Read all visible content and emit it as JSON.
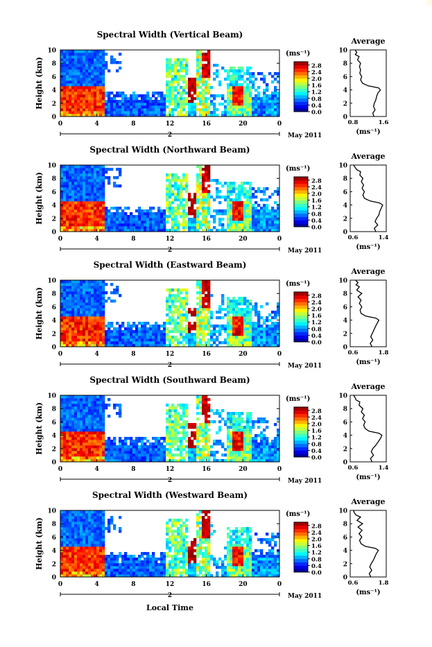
{
  "figure": {
    "xlabel": "Local Time",
    "date_label": "May 2011",
    "day_label": "2",
    "units_label": "(ms⁻¹)",
    "avg_title": "Average",
    "avg_xlabel": "(ms⁻¹)",
    "ylabel": "Height (km)"
  },
  "chart_data": [
    {
      "type": "heatmap",
      "title": "Spectral Width (Vertical Beam)",
      "ylabel": "Height (km)",
      "xlabel": "Local Time",
      "x_ticks": [
        "0",
        "4",
        "8",
        "12",
        "16",
        "20",
        "0"
      ],
      "y_ticks": [
        "0",
        "2",
        "4",
        "6",
        "8",
        "10"
      ],
      "colorbar_ticks": [
        "0.0",
        "0.4",
        "0.8",
        "1.2",
        "1.6",
        "2.0",
        "2.4",
        "2.8"
      ],
      "colorbar_range": [
        0,
        3.0
      ],
      "profile": {
        "title": "Average",
        "xlim": [
          0.8,
          1.6
        ],
        "x_ticks": [
          "0.8",
          "1.6"
        ],
        "y_ticks": [
          "0",
          "2",
          "4",
          "6",
          "8",
          "10"
        ],
        "heights": [
          0,
          0.5,
          1,
          1.5,
          2,
          2.5,
          3,
          3.5,
          4,
          4.3,
          4.6,
          5,
          5.5,
          6,
          6.5,
          7,
          7.5,
          8,
          8.5,
          9,
          9.3,
          9.6,
          10
        ],
        "values": [
          1.35,
          1.32,
          1.38,
          1.34,
          1.36,
          1.4,
          1.42,
          1.45,
          1.52,
          1.47,
          1.2,
          1.05,
          1.0,
          1.03,
          0.98,
          1.0,
          0.97,
          1.0,
          0.92,
          0.96,
          0.86,
          0.9,
          0.86
        ]
      }
    },
    {
      "type": "heatmap",
      "title": "Spectral Width (Northward Beam)",
      "ylabel": "Height (km)",
      "xlabel": "Local Time",
      "x_ticks": [
        "0",
        "4",
        "8",
        "12",
        "16",
        "20",
        "0"
      ],
      "y_ticks": [
        "0",
        "2",
        "4",
        "6",
        "8",
        "10"
      ],
      "colorbar_ticks": [
        "0.0",
        "0.4",
        "0.8",
        "1.2",
        "1.6",
        "2.0",
        "2.4",
        "2.8"
      ],
      "colorbar_range": [
        0,
        3.0
      ],
      "profile": {
        "title": "Average",
        "xlim": [
          0.6,
          1.4
        ],
        "x_ticks": [
          "0.6",
          "1.4"
        ],
        "y_ticks": [
          "0",
          "2",
          "4",
          "6",
          "8",
          "10"
        ],
        "heights": [
          0,
          0.5,
          1,
          1.5,
          2,
          2.5,
          3,
          3.5,
          4,
          4.3,
          4.6,
          5,
          5.5,
          6,
          6.5,
          7,
          7.5,
          8,
          8.5,
          9,
          9.3,
          9.6,
          10
        ],
        "values": [
          1.2,
          1.16,
          1.25,
          1.18,
          1.22,
          1.28,
          1.3,
          1.34,
          1.38,
          1.3,
          1.05,
          0.9,
          0.86,
          0.9,
          0.84,
          0.88,
          0.82,
          0.86,
          0.78,
          0.8,
          0.7,
          0.66,
          0.62
        ]
      }
    },
    {
      "type": "heatmap",
      "title": "Spectral Width (Eastward Beam)",
      "ylabel": "Height (km)",
      "xlabel": "Local Time",
      "x_ticks": [
        "0",
        "4",
        "8",
        "12",
        "16",
        "20",
        "0"
      ],
      "y_ticks": [
        "0",
        "2",
        "4",
        "6",
        "8",
        "10"
      ],
      "colorbar_ticks": [
        "0.0",
        "0.4",
        "0.8",
        "1.2",
        "1.6",
        "2.0",
        "2.4",
        "2.8"
      ],
      "colorbar_range": [
        0,
        3.0
      ],
      "profile": {
        "title": "Average",
        "xlim": [
          0.6,
          1.8
        ],
        "x_ticks": [
          "0.6",
          "1.8"
        ],
        "y_ticks": [
          "0",
          "2",
          "4",
          "6",
          "8",
          "10"
        ],
        "heights": [
          0,
          0.5,
          1,
          1.5,
          2,
          2.5,
          3,
          3.5,
          4,
          4.3,
          4.6,
          5,
          5.5,
          6,
          6.5,
          7,
          7.5,
          8,
          8.5,
          9,
          9.3,
          9.6,
          10
        ],
        "values": [
          1.35,
          1.28,
          1.38,
          1.3,
          1.36,
          1.42,
          1.48,
          1.55,
          1.62,
          1.5,
          1.1,
          0.92,
          0.88,
          0.95,
          0.85,
          0.92,
          0.8,
          0.95,
          0.75,
          0.85,
          0.72,
          0.8,
          0.7
        ]
      }
    },
    {
      "type": "heatmap",
      "title": "Spectral Width (Southward Beam)",
      "ylabel": "Height (km)",
      "xlabel": "Local Time",
      "x_ticks": [
        "0",
        "4",
        "8",
        "12",
        "16",
        "20",
        "0"
      ],
      "y_ticks": [
        "0",
        "2",
        "4",
        "6",
        "8",
        "10"
      ],
      "colorbar_ticks": [
        "0.0",
        "0.4",
        "0.8",
        "1.2",
        "1.6",
        "2.0",
        "2.4",
        "2.8"
      ],
      "colorbar_range": [
        0,
        3.0
      ],
      "profile": {
        "title": "Average",
        "xlim": [
          0.6,
          1.4
        ],
        "x_ticks": [
          "0.6",
          "1.4"
        ],
        "y_ticks": [
          "0",
          "2",
          "4",
          "6",
          "8",
          "10"
        ],
        "heights": [
          0,
          0.5,
          1,
          1.5,
          2,
          2.5,
          3,
          3.5,
          4,
          4.3,
          4.6,
          5,
          5.5,
          6,
          6.5,
          7,
          7.5,
          8,
          8.5,
          9,
          9.3,
          9.6,
          10
        ],
        "values": [
          1.1,
          1.06,
          1.14,
          1.08,
          1.12,
          1.2,
          1.26,
          1.32,
          1.36,
          1.28,
          1.02,
          0.92,
          0.88,
          0.92,
          0.85,
          0.9,
          0.82,
          0.86,
          0.76,
          0.78,
          0.68,
          0.66,
          0.62
        ]
      }
    },
    {
      "type": "heatmap",
      "title": "Spectral Width (Westward Beam)",
      "ylabel": "Height (km)",
      "xlabel": "Local Time",
      "x_ticks": [
        "0",
        "4",
        "8",
        "12",
        "16",
        "20",
        "0"
      ],
      "y_ticks": [
        "0",
        "2",
        "4",
        "6",
        "8",
        "10"
      ],
      "colorbar_ticks": [
        "0.0",
        "0.4",
        "0.8",
        "1.2",
        "1.6",
        "2.0",
        "2.4",
        "2.8"
      ],
      "colorbar_range": [
        0,
        3.0
      ],
      "profile": {
        "title": "Average",
        "xlim": [
          0.6,
          1.8
        ],
        "x_ticks": [
          "0.6",
          "1.8"
        ],
        "y_ticks": [
          "0",
          "2",
          "4",
          "6",
          "8",
          "10"
        ],
        "heights": [
          0,
          0.5,
          1,
          1.5,
          2,
          2.5,
          3,
          3.5,
          4,
          4.3,
          4.6,
          5,
          5.5,
          6,
          6.5,
          7,
          7.5,
          8,
          8.5,
          9,
          9.3,
          9.6,
          10
        ],
        "values": [
          1.3,
          1.24,
          1.34,
          1.26,
          1.32,
          1.4,
          1.46,
          1.52,
          1.6,
          1.48,
          1.08,
          0.92,
          0.86,
          0.95,
          0.84,
          0.96,
          0.8,
          0.98,
          0.76,
          0.9,
          0.72,
          0.66,
          0.62
        ]
      }
    }
  ]
}
